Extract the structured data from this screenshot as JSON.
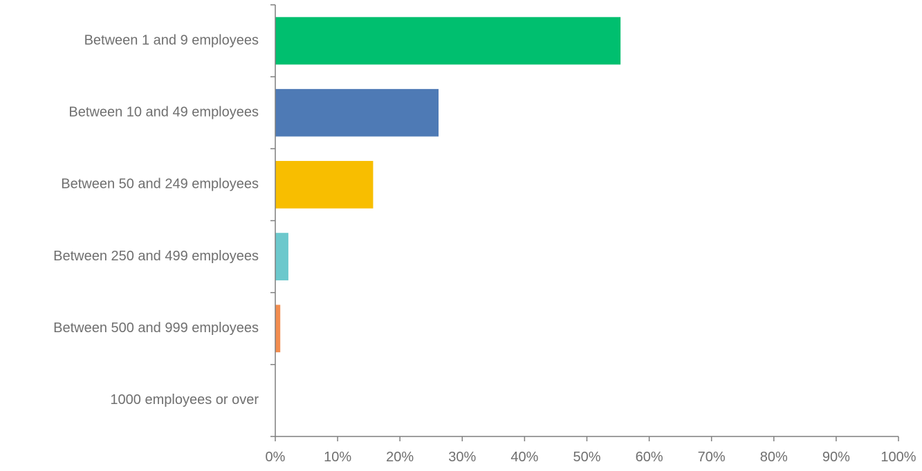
{
  "chart_data": {
    "type": "bar",
    "orientation": "horizontal",
    "title": "",
    "xlabel": "",
    "ylabel": "",
    "categories": [
      "Between 1 and 9 employees",
      "Between 10 and 49 employees",
      "Between 50 and 249 employees",
      "Between 250 and 499 employees",
      "Between 500 and 999 employees",
      "1000 employees or over"
    ],
    "values": [
      55.4,
      26.2,
      15.7,
      2.1,
      0.8,
      0
    ],
    "colors": [
      "#00bf6f",
      "#4e7ab5",
      "#f8be00",
      "#6cc8cc",
      "#f28d4f",
      "#999999"
    ],
    "xlim": [
      0,
      100
    ],
    "xticks": [
      0,
      10,
      20,
      30,
      40,
      50,
      60,
      70,
      80,
      90,
      100
    ],
    "xtick_labels": [
      "0%",
      "10%",
      "20%",
      "30%",
      "40%",
      "50%",
      "60%",
      "70%",
      "80%",
      "90%",
      "100%"
    ],
    "grid": false,
    "legend": "none"
  }
}
